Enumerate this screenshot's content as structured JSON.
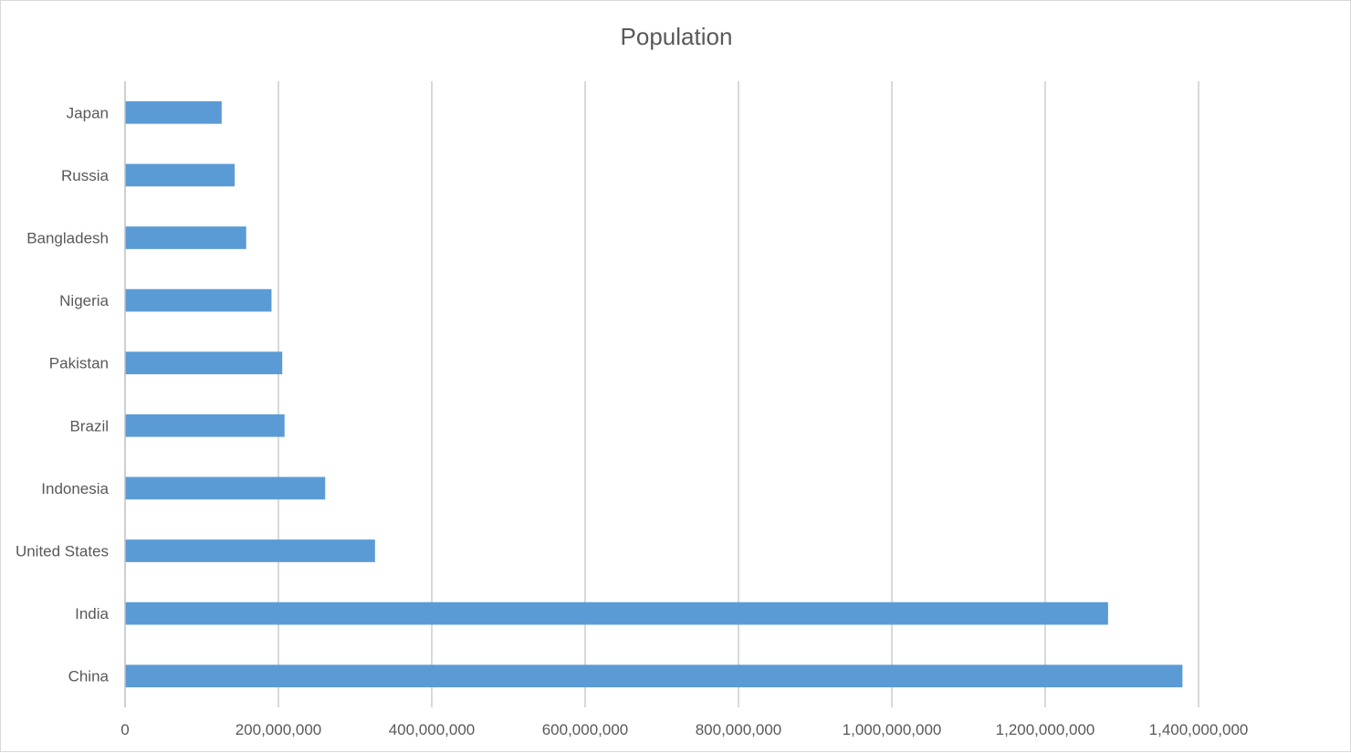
{
  "chart_data": {
    "type": "bar",
    "orientation": "horizontal",
    "title": "Population",
    "xlabel": "",
    "ylabel": "",
    "categories": [
      "China",
      "India",
      "United States",
      "Indonesia",
      "Brazil",
      "Pakistan",
      "Nigeria",
      "Bangladesh",
      "Russia",
      "Japan"
    ],
    "values": [
      1379000000,
      1282000000,
      326000000,
      261000000,
      208000000,
      205000000,
      191000000,
      158000000,
      143000000,
      126000000
    ],
    "xlim": [
      0,
      1400000000
    ],
    "x_ticks": [
      0,
      200000000,
      400000000,
      600000000,
      800000000,
      1000000000,
      1200000000,
      1400000000
    ],
    "x_tick_labels": [
      "0",
      "200,000,000",
      "400,000,000",
      "600,000,000",
      "800,000,000",
      "1,000,000,000",
      "1,200,000,000",
      "1,400,000,000"
    ],
    "grid": "vertical",
    "legend": "none",
    "colors": {
      "bar": "#5b9bd5",
      "grid": "#d9d9d9",
      "text": "#595959",
      "axis": "#bfbfbf"
    }
  }
}
